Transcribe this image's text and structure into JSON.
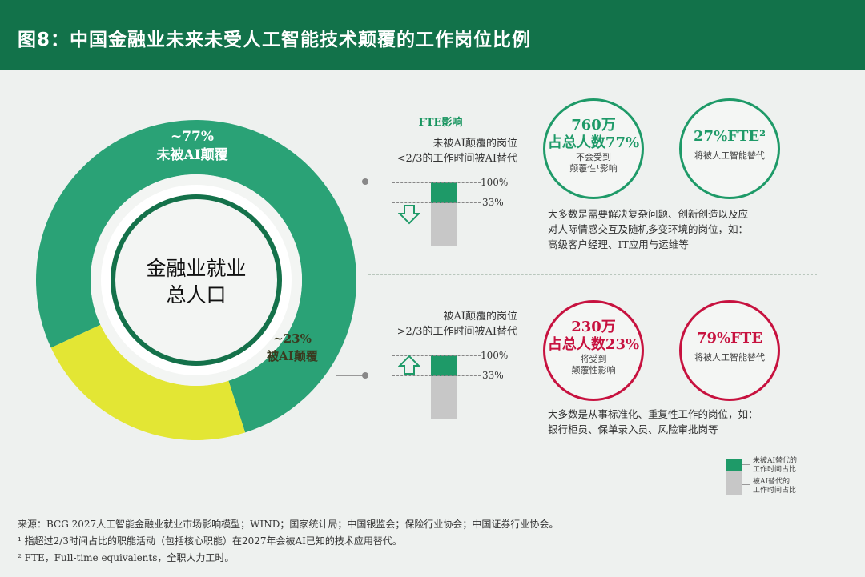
{
  "header": {
    "title": "图8：中国金融业未来未受人工智能技术颠覆的工作岗位比例"
  },
  "chart_data": {
    "type": "pie",
    "center_label": [
      "金融业就业",
      "总人口"
    ],
    "slices": [
      {
        "label": "未被AI颠覆",
        "value_text": "~77%",
        "value": 77,
        "color": "#2aa276"
      },
      {
        "label": "被AI颠覆",
        "value_text": "~23%",
        "value": 23,
        "color": "#e3e634"
      }
    ]
  },
  "fte": {
    "heading": "FTE影响",
    "top": {
      "desc_line1": "未被AI颠覆的岗位",
      "desc_line2": "<2/3的工作时间被AI替代",
      "pct_high": "100%",
      "pct_low": "33%",
      "ai_share": 0.33,
      "arrow": "down"
    },
    "bottom": {
      "desc_line1": "被AI颠覆的岗位",
      "desc_line2": ">2/3的工作时间被AI替代",
      "pct_high": "100%",
      "pct_low": "33%",
      "ai_share": 0.33,
      "arrow": "up"
    }
  },
  "circles": {
    "top_left": {
      "big1": "760万",
      "big2": "占总人数77%",
      "small1": "不会受到",
      "small2": "颠覆性¹影响"
    },
    "top_right": {
      "big": "27%FTE²",
      "small": "将被人工智能替代"
    },
    "bottom_left": {
      "big1": "230万",
      "big2": "占总人数23%",
      "small1": "将受到",
      "small2": "颠覆性影响"
    },
    "bottom_right": {
      "big": "79%FTE",
      "small": "将被人工智能替代"
    }
  },
  "notes": {
    "top_line1": "大多数是需要解决复杂问题、创新创造以及应",
    "top_line2": "对人际情感交互及随机多变环境的岗位，如：",
    "top_line3": "高级客户经理、IT应用与运维等",
    "bottom_line1": "大多数是从事标准化、重复性工作的岗位，如：",
    "bottom_line2": "银行柜员、保单录入员、风险审批岗等"
  },
  "legend": {
    "green_line1": "未被AI替代的",
    "green_line2": "工作时间占比",
    "grey_line1": "被AI替代的",
    "grey_line2": "工作时间占比"
  },
  "footer": {
    "source": "来源：BCG 2027人工智能金融业就业市场影响模型；WIND；国家统计局；中国银监会；保险行业协会；中国证券行业协会。",
    "note1": "¹ 指超过2/3时间占比的职能活动（包括核心职能）在2027年会被AI已知的技术应用替代。",
    "note2": "² FTE，Full-time equivalents，全职人力工时。"
  },
  "colors": {
    "header": "#12724a",
    "green": "#1e9a68",
    "yellow": "#e3e634",
    "red": "#c7123f",
    "grey": "#c7c7c7"
  }
}
